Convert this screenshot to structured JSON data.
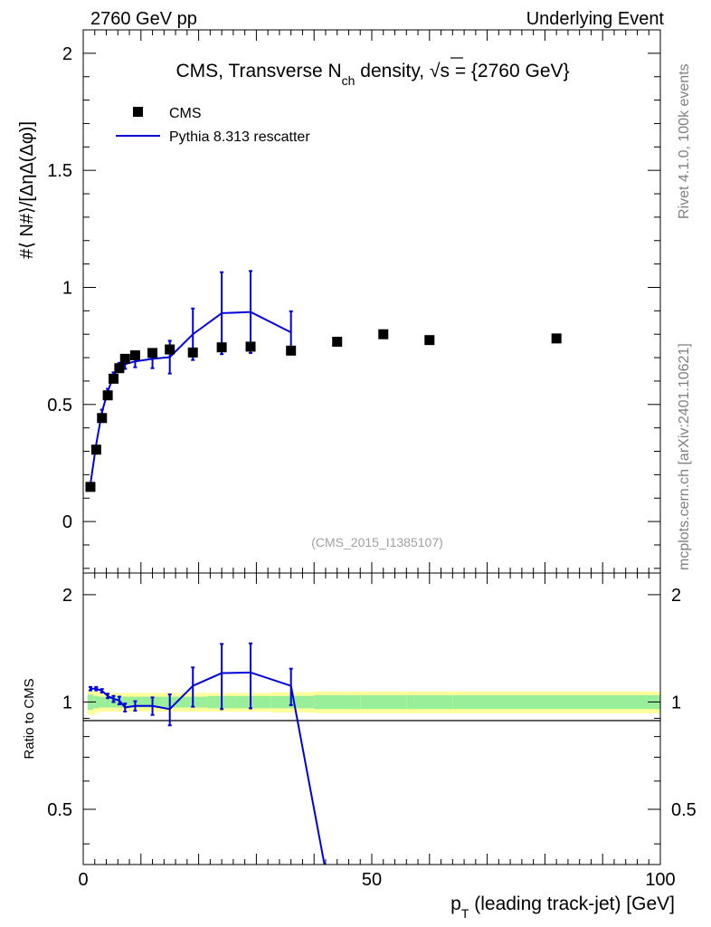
{
  "header": {
    "left": "2760 GeV pp",
    "right": "Underlying Event"
  },
  "side_labels": {
    "top": "Rivet 4.1.0,  100k events",
    "bottom": "mcplots.cern.ch [arXiv:2401.10621]"
  },
  "chart_data": [
    {
      "type": "scatter",
      "panel": "main",
      "title": {
        "prefix": "CMS, Transverse N",
        "sub": "ch",
        "suffix": " density, ",
        "sqrt": "√s",
        "tail": " = {2760 GeV}"
      },
      "ylabel": "#⟨ N#⟩/[ΔηΔ(Δφ)]",
      "watermark": "(CMS_2015_I1385107)",
      "xlim": [
        0,
        100
      ],
      "ylim": [
        -0.22,
        2.1
      ],
      "yticks": [
        {
          "v": 0,
          "label": "0"
        },
        {
          "v": 0.5,
          "label": "0.5"
        },
        {
          "v": 1,
          "label": "1"
        },
        {
          "v": 1.5,
          "label": "1.5"
        },
        {
          "v": 2,
          "label": "2"
        }
      ],
      "legend": [
        {
          "name": "CMS",
          "marker": "square",
          "color": "#000000"
        },
        {
          "name": "Pythia 8.313 rescatter",
          "marker": "line",
          "color": "#0000dd"
        }
      ],
      "series": [
        {
          "name": "CMS",
          "color": "#000000",
          "x": [
            1.25,
            2.25,
            3.25,
            4.25,
            5.25,
            6.25,
            7.25,
            9.0,
            12.0,
            15.0,
            19.0,
            24.0,
            29.0,
            36.0,
            44.0,
            52.0,
            60.0,
            82.0
          ],
          "y": [
            0.148,
            0.307,
            0.442,
            0.539,
            0.61,
            0.655,
            0.695,
            0.71,
            0.72,
            0.735,
            0.722,
            0.744,
            0.747,
            0.73,
            0.768,
            0.8,
            0.775,
            0.782
          ]
        },
        {
          "name": "Pythia 8.313 rescatter",
          "color": "#0000dd",
          "x": [
            1.25,
            2.25,
            3.25,
            4.25,
            5.25,
            6.25,
            7.25,
            9.0,
            12.0,
            15.0,
            19.0,
            24.0,
            29.0,
            36.0
          ],
          "y": [
            0.16,
            0.33,
            0.468,
            0.555,
            0.622,
            0.66,
            0.672,
            0.684,
            0.695,
            0.702,
            0.8,
            0.89,
            0.895,
            0.808
          ],
          "err": [
            0.004,
            0.006,
            0.01,
            0.012,
            0.015,
            0.018,
            0.02,
            0.025,
            0.04,
            0.07,
            0.11,
            0.175,
            0.175,
            0.09
          ]
        }
      ]
    },
    {
      "type": "line",
      "panel": "ratio",
      "ylabel": "Ratio to CMS",
      "xlabel": {
        "prefix": "p",
        "sub": "T",
        "suffix": " (leading track-jet) [GeV]"
      },
      "xlim": [
        0,
        100
      ],
      "ylim": [
        0.35,
        2.3
      ],
      "xticks": [
        {
          "v": 0,
          "label": "0"
        },
        {
          "v": 50,
          "label": "50"
        },
        {
          "v": 100,
          "label": "100"
        }
      ],
      "yticks": [
        {
          "v": 0.5,
          "label": "0.5"
        },
        {
          "v": 1,
          "label": "1"
        },
        {
          "v": 2,
          "label": "2"
        }
      ],
      "bands": {
        "x_edges": [
          0.75,
          1.75,
          2.75,
          3.75,
          4.75,
          5.75,
          6.75,
          7.75,
          10.25,
          13.75,
          16.75,
          21.5,
          26.5,
          32.5,
          40,
          48,
          56,
          64,
          100
        ],
        "stat_sys": [
          0.08,
          0.07,
          0.06,
          0.06,
          0.06,
          0.06,
          0.06,
          0.06,
          0.06,
          0.06,
          0.06,
          0.06,
          0.06,
          0.065,
          0.07,
          0.07,
          0.07,
          0.07
        ],
        "stat": [
          0.05,
          0.04,
          0.035,
          0.035,
          0.035,
          0.035,
          0.035,
          0.035,
          0.035,
          0.035,
          0.035,
          0.04,
          0.04,
          0.04,
          0.045,
          0.045,
          0.045,
          0.045
        ],
        "outer_color": "#ffff99",
        "inner_color": "#99ee99"
      },
      "series": [
        {
          "name": "Pythia 8.313 rescatter",
          "color": "#0000dd",
          "x": [
            1.25,
            2.25,
            3.25,
            4.25,
            5.25,
            6.25,
            7.25,
            9.0,
            12.0,
            15.0,
            19.0,
            24.0,
            29.0,
            36.0,
            41.8
          ],
          "y": [
            1.09,
            1.09,
            1.075,
            1.04,
            1.02,
            1.01,
            0.965,
            0.975,
            0.975,
            0.955,
            1.11,
            1.205,
            1.21,
            1.11,
            0.35
          ],
          "err": [
            0.012,
            0.012,
            0.012,
            0.015,
            0.02,
            0.025,
            0.025,
            0.03,
            0.055,
            0.095,
            0.14,
            0.25,
            0.25,
            0.13,
            0
          ]
        }
      ]
    }
  ]
}
